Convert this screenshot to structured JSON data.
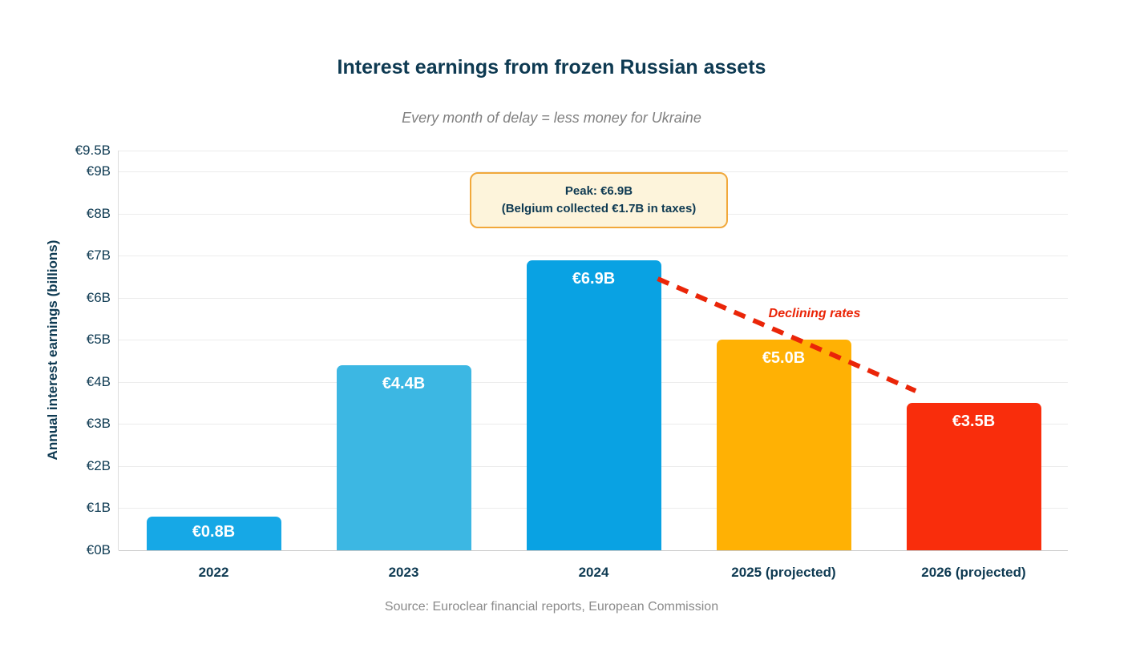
{
  "chart_data": {
    "type": "bar",
    "title": "Interest earnings from frozen Russian assets",
    "subtitle": "Every month of delay = less money for Ukraine",
    "ylabel": "Annual interest earnings (billions)",
    "xlabel": "",
    "categories": [
      "2022",
      "2023",
      "2024",
      "2025 (projected)",
      "2026 (projected)"
    ],
    "values": [
      0.8,
      4.4,
      6.9,
      5.0,
      3.5
    ],
    "value_labels": [
      "€0.8B",
      "€4.4B",
      "€6.9B",
      "€5.0B",
      "€3.5B"
    ],
    "bar_colors": [
      "#16A8E6",
      "#3CB7E3",
      "#09A2E3",
      "#FFB104",
      "#F92D0C"
    ],
    "ylim": [
      0,
      9.5
    ],
    "yticks": [
      0,
      1,
      2,
      3,
      4,
      5,
      6,
      7,
      8,
      9,
      9.5
    ],
    "ytick_labels": [
      "€0B",
      "€1B",
      "€2B",
      "€3B",
      "€4B",
      "€5B",
      "€6B",
      "€7B",
      "€8B",
      "€9B",
      "€9.5B"
    ],
    "grid": true,
    "legend": false,
    "annotations": {
      "peak_line1": "Peak: €6.9B",
      "peak_line2": "(Belgium collected €1.7B in taxes)",
      "trend_label": "Declining rates"
    },
    "source": "Source: Euroclear financial reports, European Commission"
  },
  "colors": {
    "heading": "#0E3A52",
    "subtitle_gray": "#808080",
    "source_gray": "#8A8A8A",
    "gridline": "#ECECEC",
    "axis_line": "#C9C9C9",
    "trend_red": "#EA2508",
    "peak_box_bg": "#FDF4DB",
    "peak_box_border": "#F1A83B"
  }
}
